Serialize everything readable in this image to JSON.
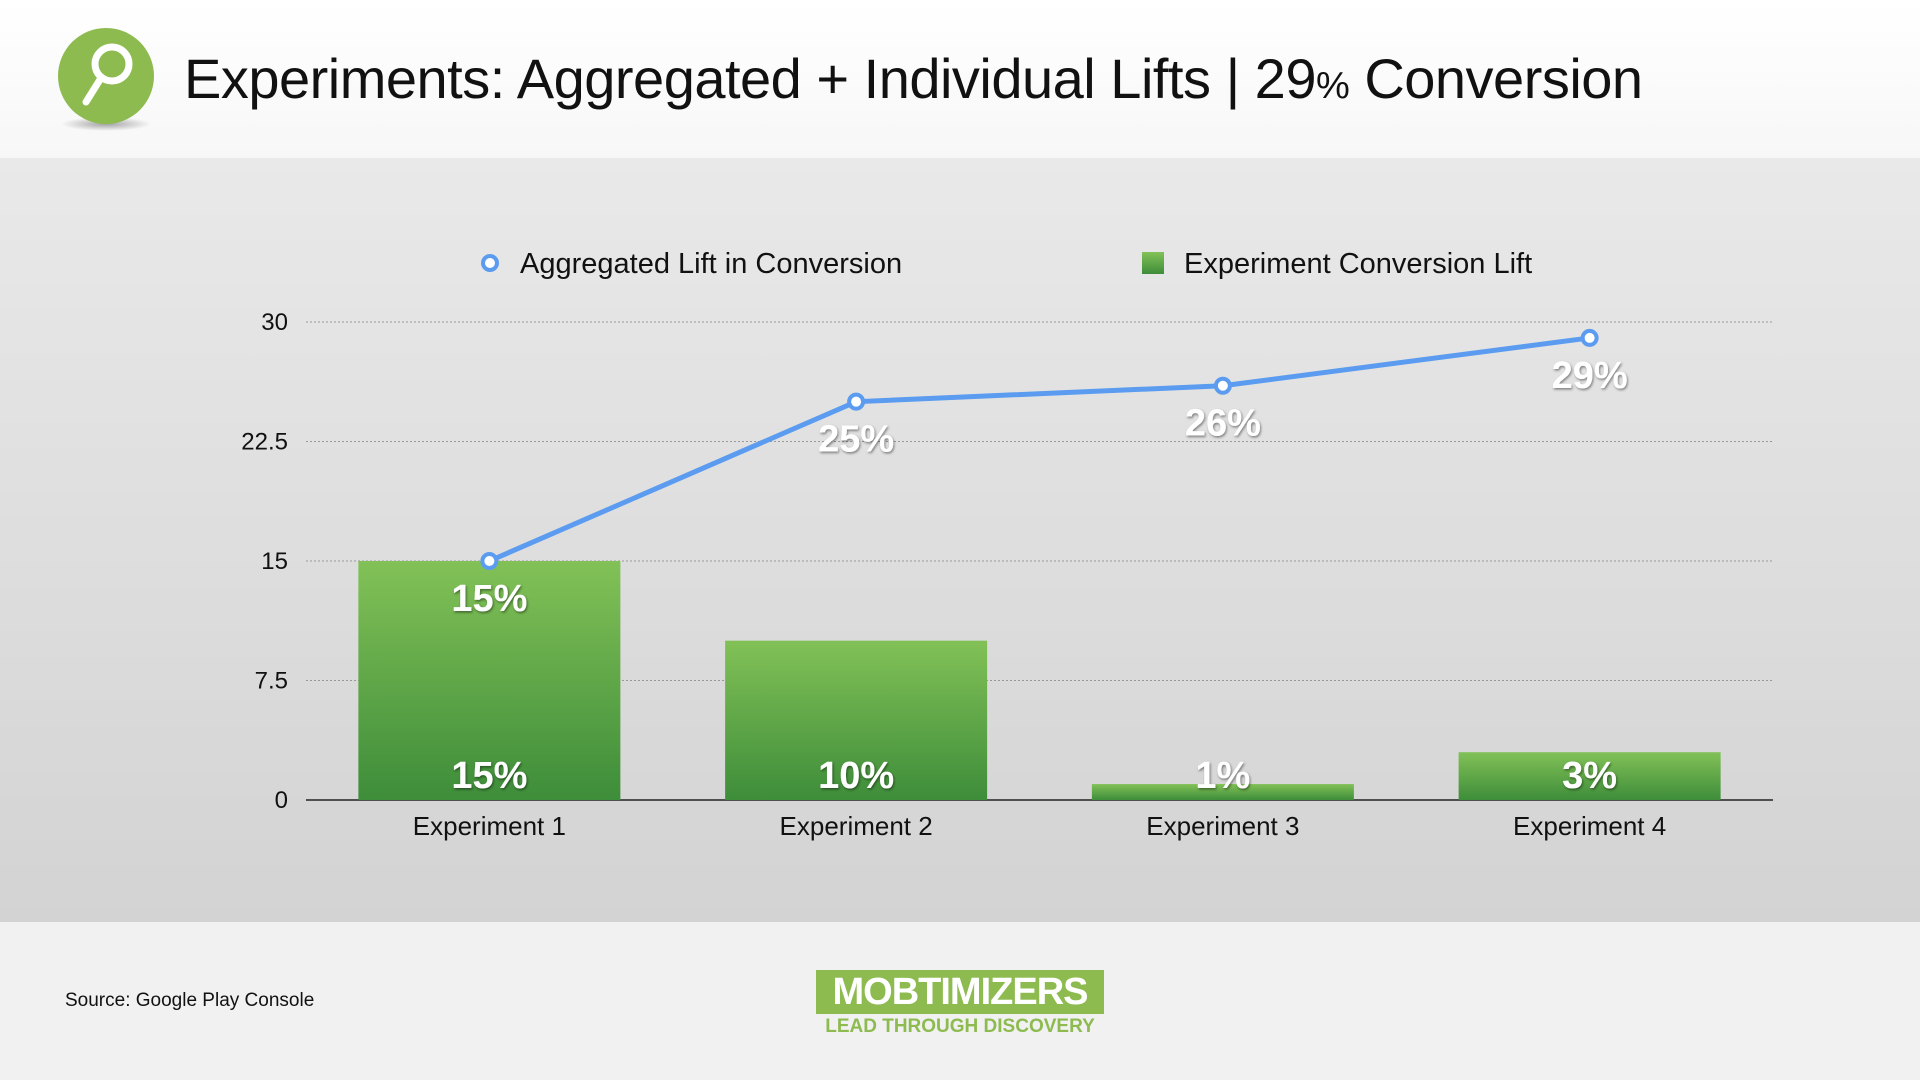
{
  "header": {
    "title_main": "Experiments: Aggregated + Individual Lifts | 29",
    "title_pct": "%",
    "title_end": " Conversion",
    "icon": "magnifier-icon"
  },
  "colors": {
    "line": "#5b9cf0",
    "bar_top": "#82c157",
    "bar_bottom": "#3e8d3a",
    "icon": "#8dbb4f"
  },
  "chart_data": {
    "type": "bar",
    "categories": [
      "Experiment 1",
      "Experiment 2",
      "Experiment 3",
      "Experiment 4"
    ],
    "ylim": [
      0,
      30
    ],
    "yticks": [
      "0",
      "7.5",
      "15",
      "22.5",
      "30"
    ],
    "grid": true,
    "legend_placement": "top",
    "series": [
      {
        "name": "Aggregated Lift in Conversion",
        "type": "line",
        "values": [
          15,
          25,
          26,
          29
        ],
        "labels": [
          "15%",
          "25%",
          "26%",
          "29%"
        ]
      },
      {
        "name": "Experiment Conversion Lift",
        "type": "bar",
        "values": [
          15,
          10,
          1,
          3
        ],
        "labels": [
          "15%",
          "10%",
          "1%",
          "3%"
        ]
      }
    ]
  },
  "footer": {
    "source": "Source: Google Play Console",
    "logo": "MOBTIMIZERS",
    "tagline": "LEAD THROUGH DISCOVERY"
  }
}
